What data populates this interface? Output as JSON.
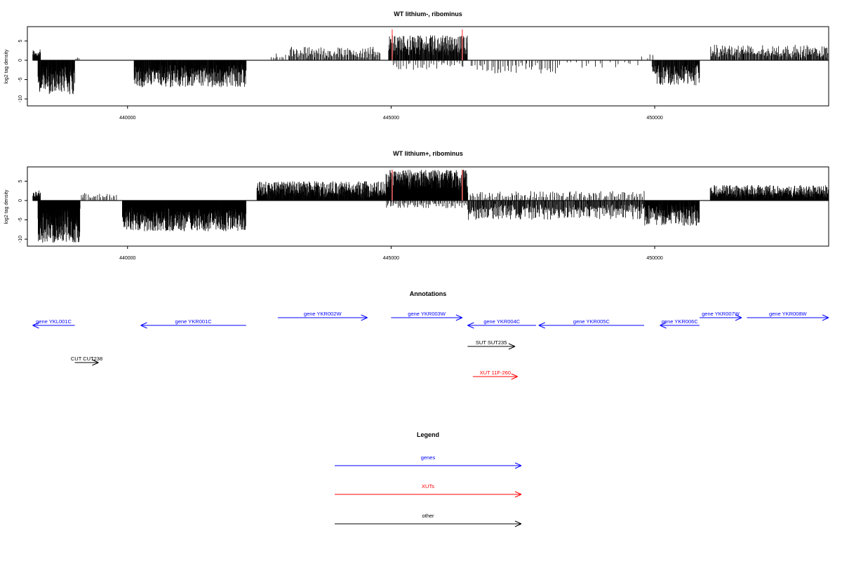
{
  "colors": {
    "genes": "#0000ff",
    "xuts": "#ff0000",
    "other": "#000000",
    "data": "#000000",
    "highlight": "#ff6a6a"
  },
  "chart_data": [
    {
      "type": "bar",
      "title": "WT lithium-, ribominus",
      "ylabel": "log2 tag density",
      "xlim": [
        438100,
        453300
      ],
      "ylim": [
        -11.8,
        8.7
      ],
      "xticks": [
        440000,
        445000,
        450000
      ],
      "xtick_labels": [
        "440000",
        "445000",
        "450000"
      ],
      "yticks": [
        -10,
        -5,
        0,
        5
      ],
      "ytick_labels": [
        "-10",
        "-5",
        "0",
        "5"
      ],
      "highlight_x": [
        445020,
        446350
      ],
      "segments": [
        {
          "start": 438200,
          "end": 438350,
          "mode": "pos",
          "max": 2.8,
          "density": 3
        },
        {
          "start": 438300,
          "end": 439000,
          "mode": "neg",
          "max": 9.0,
          "density": 2.5
        },
        {
          "start": 439000,
          "end": 439100,
          "mode": "pos",
          "max": 1.2,
          "density": 0.5
        },
        {
          "start": 440120,
          "end": 442250,
          "mode": "neg",
          "max": 7.0,
          "density": 2.5
        },
        {
          "start": 442700,
          "end": 443000,
          "mode": "pos",
          "max": 2.0,
          "density": 0.4
        },
        {
          "start": 443050,
          "end": 444800,
          "mode": "pos",
          "max": 3.5,
          "density": 0.9
        },
        {
          "start": 444950,
          "end": 446450,
          "mode": "pos",
          "max": 6.5,
          "density": 2.0
        },
        {
          "start": 445000,
          "end": 446400,
          "mode": "neg",
          "max": 2.5,
          "density": 0.3
        },
        {
          "start": 446500,
          "end": 448200,
          "mode": "neg",
          "max": 3.5,
          "density": 0.35
        },
        {
          "start": 448300,
          "end": 449700,
          "mode": "neg",
          "max": 2.0,
          "density": 0.15
        },
        {
          "start": 449750,
          "end": 450000,
          "mode": "pos",
          "max": 2.5,
          "density": 0.2
        },
        {
          "start": 449950,
          "end": 450850,
          "mode": "neg",
          "max": 6.5,
          "density": 2.0
        },
        {
          "start": 451050,
          "end": 453300,
          "mode": "pos",
          "max": 4.0,
          "density": 1.2
        }
      ]
    },
    {
      "type": "bar",
      "title": "WT lithium+, ribominus",
      "ylabel": "log2 tag density",
      "xlim": [
        438100,
        453300
      ],
      "ylim": [
        -11.8,
        8.7
      ],
      "xticks": [
        440000,
        445000,
        450000
      ],
      "xtick_labels": [
        "440000",
        "445000",
        "450000"
      ],
      "yticks": [
        -10,
        -5,
        0,
        5
      ],
      "ytick_labels": [
        "-10",
        "-5",
        "0",
        "5"
      ],
      "highlight_x": [
        445020,
        446350
      ],
      "segments": [
        {
          "start": 438200,
          "end": 438350,
          "mode": "pos",
          "max": 2.8,
          "density": 3
        },
        {
          "start": 438300,
          "end": 439100,
          "mode": "neg",
          "max": 11.0,
          "density": 4
        },
        {
          "start": 439100,
          "end": 439800,
          "mode": "pos",
          "max": 2.0,
          "density": 0.5
        },
        {
          "start": 439900,
          "end": 442250,
          "mode": "neg",
          "max": 8.0,
          "density": 4
        },
        {
          "start": 442450,
          "end": 444900,
          "mode": "pos",
          "max": 5.0,
          "density": 2.5
        },
        {
          "start": 444900,
          "end": 446450,
          "mode": "pos",
          "max": 8.0,
          "density": 5
        },
        {
          "start": 444900,
          "end": 446450,
          "mode": "neg",
          "max": 2.0,
          "density": 0.6
        },
        {
          "start": 446450,
          "end": 449800,
          "mode": "neg",
          "max": 5.0,
          "density": 1.3
        },
        {
          "start": 446450,
          "end": 449800,
          "mode": "pos",
          "max": 2.5,
          "density": 0.5
        },
        {
          "start": 449800,
          "end": 450850,
          "mode": "neg",
          "max": 6.5,
          "density": 2.5
        },
        {
          "start": 451050,
          "end": 453300,
          "mode": "pos",
          "max": 4.0,
          "density": 2.5
        }
      ]
    }
  ],
  "annotations": {
    "title": "Annotations",
    "features": [
      {
        "label": "gene YKL001C",
        "start": 439000,
        "end": 438200,
        "lane": 1,
        "kind": "genes"
      },
      {
        "label": "gene YKR001C",
        "start": 442250,
        "end": 440250,
        "lane": 1,
        "kind": "genes"
      },
      {
        "label": "gene YKR002W",
        "start": 442850,
        "end": 444550,
        "lane": 0,
        "kind": "genes"
      },
      {
        "label": "gene YKR003W",
        "start": 445000,
        "end": 446350,
        "lane": 0,
        "kind": "genes"
      },
      {
        "label": "gene YKR004C",
        "start": 447750,
        "end": 446450,
        "lane": 1,
        "kind": "genes"
      },
      {
        "label": "gene YKR005C",
        "start": 449800,
        "end": 447800,
        "lane": 1,
        "kind": "genes"
      },
      {
        "label": "gene YKR006C",
        "start": 450850,
        "end": 450100,
        "lane": 1,
        "kind": "genes"
      },
      {
        "label": "gene YKR007W",
        "start": 450850,
        "end": 451650,
        "lane": 0,
        "kind": "genes"
      },
      {
        "label": "gene YKR008W",
        "start": 451750,
        "end": 453300,
        "lane": 0,
        "kind": "genes"
      },
      {
        "label": "SUT SUT235",
        "start": 446450,
        "end": 447350,
        "lane": 2,
        "kind": "other"
      },
      {
        "label": "CUT CUT238",
        "start": 439000,
        "end": 439450,
        "lane": 3,
        "kind": "other"
      },
      {
        "label": "XUT 11F-260",
        "start": 446550,
        "end": 447400,
        "lane": 4,
        "kind": "xuts"
      }
    ]
  },
  "legend": {
    "title": "Legend",
    "items": [
      {
        "label": "genes",
        "kind": "genes"
      },
      {
        "label": "XUTs",
        "kind": "xuts"
      },
      {
        "label": "other",
        "kind": "other"
      }
    ]
  }
}
